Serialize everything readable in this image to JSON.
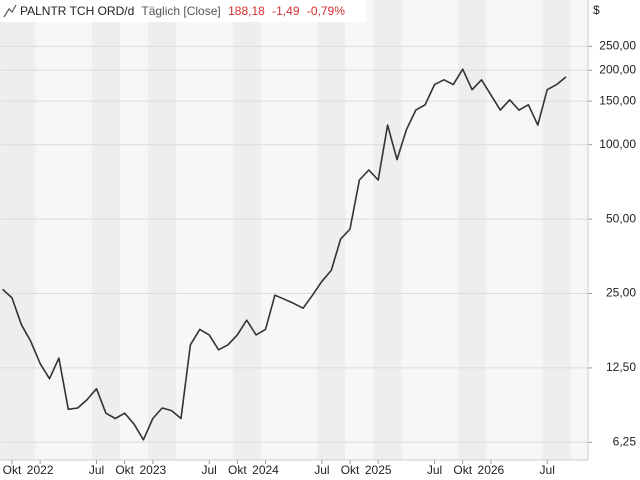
{
  "chart_data": {
    "type": "line",
    "title": "PALNTR TCH ORD/d",
    "subtitle": "Täglich [Close]",
    "annotations": [
      "188,18",
      "-1,49",
      "-0,79%"
    ],
    "y_label": "$",
    "log_y": true,
    "grid": true,
    "color": "#333333",
    "categories": [
      null,
      "Okt",
      null,
      null,
      "2022",
      null,
      null,
      null,
      null,
      null,
      "Jul",
      null,
      null,
      "Okt",
      null,
      null,
      "2023",
      null,
      null,
      null,
      null,
      null,
      "Jul",
      null,
      null,
      "Okt",
      null,
      null,
      "2024",
      null,
      null,
      null,
      null,
      null,
      "Jul",
      null,
      null,
      "Okt",
      null,
      null,
      "2025",
      null,
      null,
      null,
      null,
      null,
      "Jul",
      null,
      null,
      "Okt",
      null,
      null,
      "2026",
      null,
      null,
      null,
      null,
      null,
      "Jul",
      null,
      null
    ],
    "values": [
      26,
      24,
      18.7,
      16,
      13,
      11.3,
      13.7,
      8.5,
      8.6,
      9.3,
      10.3,
      8.2,
      7.8,
      8.2,
      7.4,
      6.4,
      7.8,
      8.6,
      8.4,
      7.8,
      15.5,
      17.9,
      17,
      14.8,
      15.5,
      17,
      19.5,
      17,
      17.9,
      24.6,
      23.7,
      22.8,
      21.8,
      24.6,
      28,
      31,
      41.5,
      45.6,
      72,
      79,
      72,
      120,
      87,
      115,
      138,
      145,
      175,
      183,
      175,
      202,
      167,
      183,
      159,
      138,
      152,
      138,
      145,
      120,
      167,
      175,
      188
    ],
    "ylim": [
      5.3,
      385
    ],
    "yticks": [
      {
        "value": 6.25,
        "label": "6,25"
      },
      {
        "value": 12.5,
        "label": "12,50"
      },
      {
        "value": 25,
        "label": "25,00"
      },
      {
        "value": 50,
        "label": "50,00"
      },
      {
        "value": 100,
        "label": "100,00"
      },
      {
        "value": 150,
        "label": "150,00"
      },
      {
        "value": 200,
        "label": "200,00"
      },
      {
        "value": 250,
        "label": "250,00"
      }
    ]
  }
}
